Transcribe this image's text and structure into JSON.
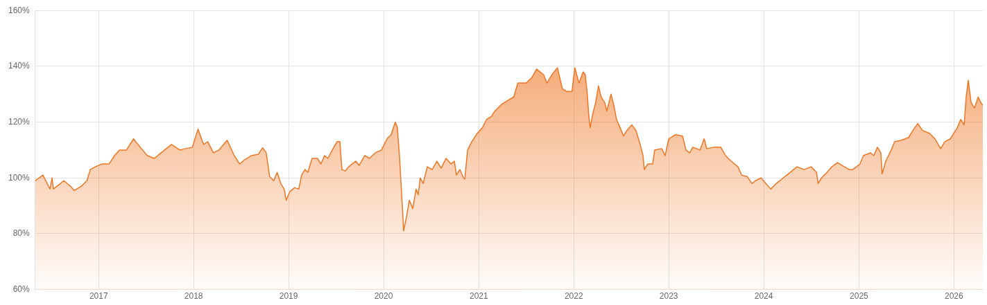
{
  "chart_data": {
    "type": "area",
    "x": [
      "2016-05-02",
      "2016-06-01",
      "2016-06-28",
      "2016-07-06",
      "2016-07-11",
      "2016-08-07",
      "2016-08-20",
      "2016-09-15",
      "2016-09-29",
      "2016-10-26",
      "2016-11-17",
      "2016-11-30",
      "2016-12-19",
      "2017-01-14",
      "2017-02-10",
      "2017-03-03",
      "2017-03-22",
      "2017-04-18",
      "2017-05-15",
      "2017-06-10",
      "2017-07-07",
      "2017-08-03",
      "2017-08-29",
      "2017-10-08",
      "2017-11-09",
      "2017-12-01",
      "2017-12-27",
      "2018-01-18",
      "2018-02-08",
      "2018-02-24",
      "2018-03-18",
      "2018-04-08",
      "2018-05-10",
      "2018-06-06",
      "2018-06-27",
      "2018-07-16",
      "2018-08-11",
      "2018-09-07",
      "2018-09-23",
      "2018-10-07",
      "2018-10-20",
      "2018-11-05",
      "2018-11-18",
      "2018-12-02",
      "2018-12-15",
      "2018-12-23",
      "2019-01-05",
      "2019-01-24",
      "2019-02-09",
      "2019-02-20",
      "2019-03-05",
      "2019-03-16",
      "2019-04-01",
      "2019-04-22",
      "2019-05-05",
      "2019-05-19",
      "2019-06-01",
      "2019-06-15",
      "2019-07-06",
      "2019-07-17",
      "2019-07-25",
      "2019-08-07",
      "2019-08-20",
      "2019-09-16",
      "2019-09-29",
      "2019-10-21",
      "2019-11-08",
      "2019-11-30",
      "2019-12-24",
      "2020-01-14",
      "2020-01-30",
      "2020-02-15",
      "2020-02-23",
      "2020-03-02",
      "2020-03-13",
      "2020-03-18",
      "2020-03-29",
      "2020-04-09",
      "2020-04-22",
      "2020-05-05",
      "2020-05-13",
      "2020-05-21",
      "2020-06-01",
      "2020-06-17",
      "2020-07-06",
      "2020-07-24",
      "2020-08-09",
      "2020-08-28",
      "2020-09-16",
      "2020-09-29",
      "2020-10-07",
      "2020-10-20",
      "2020-11-03",
      "2020-11-08",
      "2020-11-19",
      "2020-12-05",
      "2020-12-26",
      "2021-01-15",
      "2021-01-31",
      "2021-02-18",
      "2021-03-04",
      "2021-03-31",
      "2021-04-26",
      "2021-05-15",
      "2021-05-31",
      "2021-07-02",
      "2021-07-24",
      "2021-08-11",
      "2021-09-07",
      "2021-09-20",
      "2021-10-09",
      "2021-10-30",
      "2021-11-18",
      "2021-12-04",
      "2021-12-25",
      "2022-01-05",
      "2022-01-21",
      "2022-02-06",
      "2022-02-14",
      "2022-02-22",
      "2022-02-27",
      "2022-03-05",
      "2022-03-15",
      "2022-03-26",
      "2022-04-06",
      "2022-04-16",
      "2022-04-30",
      "2022-05-08",
      "2022-05-24",
      "2022-06-04",
      "2022-06-14",
      "2022-06-28",
      "2022-07-11",
      "2022-07-24",
      "2022-08-12",
      "2022-08-28",
      "2022-09-13",
      "2022-09-24",
      "2022-09-29",
      "2022-10-12",
      "2022-10-31",
      "2022-11-08",
      "2022-12-05",
      "2022-12-18",
      "2023-01-01",
      "2023-01-27",
      "2023-02-23",
      "2023-03-08",
      "2023-03-22",
      "2023-04-04",
      "2023-05-01",
      "2023-05-17",
      "2023-05-27",
      "2023-06-23",
      "2023-07-20",
      "2023-08-07",
      "2023-08-29",
      "2023-09-24",
      "2023-10-08",
      "2023-10-29",
      "2023-11-17",
      "2023-11-30",
      "2023-12-22",
      "2024-01-09",
      "2024-01-28",
      "2024-02-18",
      "2024-03-16",
      "2024-04-12",
      "2024-05-08",
      "2024-06-04",
      "2024-07-01",
      "2024-07-22",
      "2024-07-28",
      "2024-08-10",
      "2024-08-31",
      "2024-09-19",
      "2024-10-10",
      "2024-11-06",
      "2024-11-25",
      "2024-12-08",
      "2025-01-05",
      "2025-01-18",
      "2025-02-14",
      "2025-02-27",
      "2025-03-13",
      "2025-03-26",
      "2025-03-31",
      "2025-04-14",
      "2025-05-05",
      "2025-05-18",
      "2025-06-14",
      "2025-07-11",
      "2025-07-27",
      "2025-08-15",
      "2025-09-02",
      "2025-09-29",
      "2025-10-20",
      "2025-11-11",
      "2025-11-27",
      "2025-12-18",
      "2026-01-14",
      "2026-01-27",
      "2026-02-09",
      "2026-02-17",
      "2026-02-25",
      "2026-03-08",
      "2026-03-21",
      "2026-04-04",
      "2026-04-14",
      "2026-04-22"
    ],
    "series": [
      {
        "color": "#ee7623",
        "values": [
          99,
          101,
          96,
          100,
          96,
          98,
          99,
          97,
          95.5,
          97,
          99,
          103,
          104,
          105,
          105,
          108,
          110,
          110,
          114,
          111,
          108,
          107,
          109,
          112,
          110,
          110.5,
          111,
          117.5,
          112,
          113,
          109,
          110,
          113.5,
          108,
          105,
          106.5,
          108,
          108.5,
          110.8,
          109,
          100.5,
          99,
          102,
          98,
          96,
          92,
          95,
          96.5,
          96,
          101,
          103,
          102,
          107,
          107,
          105,
          108,
          107,
          109.5,
          113,
          113,
          103,
          102.5,
          104,
          106,
          104.5,
          108,
          107,
          109,
          110,
          114,
          115.5,
          120,
          118,
          108,
          90,
          81,
          86,
          92,
          89,
          96,
          94,
          100,
          98,
          104,
          103,
          106,
          103.5,
          107,
          105,
          106,
          101,
          103,
          100,
          99.6,
          110,
          113,
          116,
          118,
          121,
          122,
          124,
          126.5,
          128,
          129,
          134,
          134,
          136,
          139,
          137,
          134,
          137,
          139.5,
          132,
          131,
          131,
          139.5,
          134,
          138,
          137,
          130,
          123,
          118,
          123,
          127,
          133,
          129,
          127,
          124,
          130,
          126,
          121,
          118,
          115,
          117,
          119,
          117,
          112,
          108,
          103,
          105,
          105,
          110,
          110.5,
          108,
          114,
          115.5,
          115,
          110,
          109,
          111,
          110,
          114,
          110.5,
          111,
          111,
          108,
          106,
          104,
          101,
          100.5,
          98,
          99,
          100,
          98,
          96,
          98,
          100,
          102,
          104,
          103,
          104,
          102,
          98,
          100,
          102,
          104,
          105.5,
          104,
          103,
          103,
          105,
          108,
          109,
          108,
          111,
          109,
          101.5,
          106,
          110,
          113,
          113.5,
          114.5,
          117,
          119.5,
          117,
          116,
          114,
          110.5,
          113,
          114,
          118,
          121,
          119,
          129,
          135,
          127,
          125,
          129,
          127,
          126
        ]
      }
    ],
    "xlim": [
      "2016-05-02",
      "2026-04-22"
    ],
    "xticks": [
      "2017",
      "2018",
      "2019",
      "2020",
      "2021",
      "2022",
      "2023",
      "2024",
      "2025",
      "2026"
    ],
    "ylim": [
      60,
      160
    ],
    "yticks": [
      {
        "value": 60,
        "label": "60%"
      },
      {
        "value": 80,
        "label": "80%"
      },
      {
        "value": 100,
        "label": "100%"
      },
      {
        "value": 120,
        "label": "120%"
      },
      {
        "value": 140,
        "label": "140%"
      },
      {
        "value": 160,
        "label": "160%"
      }
    ],
    "grid": true
  }
}
